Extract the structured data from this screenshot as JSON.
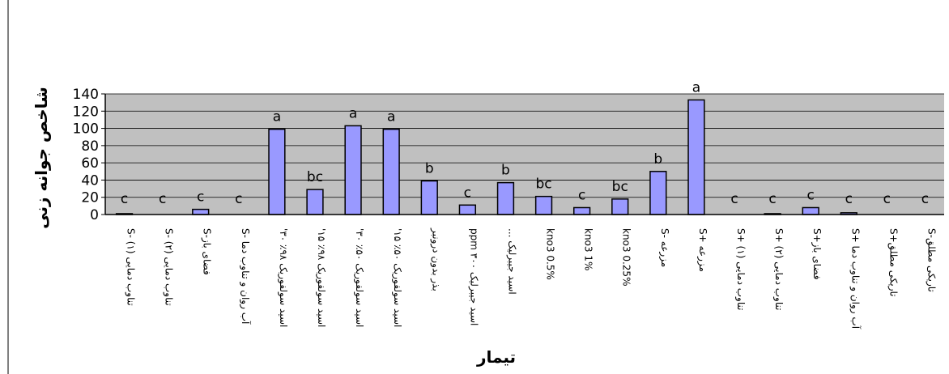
{
  "chart_data": {
    "type": "bar",
    "ylabel": "شاخص جوانه زنی",
    "xlabel": "تیمار",
    "ylim": [
      0,
      140
    ],
    "yticks": [
      0,
      20,
      40,
      60,
      80,
      100,
      120,
      140
    ],
    "grid": true,
    "legend": "none",
    "colors": {
      "bar": "#9999ff",
      "bar_stroke": "#000000",
      "plot_bg": "#c0c0c0",
      "grid": "#000000"
    },
    "categories": [
      "تناوب دمایی (۱) -S",
      "تناوب دمایی (۲) -S",
      "فضای باز-S",
      "آب روان و تناوب دما -S",
      "اسید سولفوریک ۹۸٪ ۳۰'",
      "اسید سولفوریک ۹۸٪ ۱۵'",
      "اسید سولفوریک ۵۰٪ ۳۰'",
      "اسید سولفوریک ۵۰٪ ۱۵'",
      "بذر بدون درونبر",
      "اسید جیبرلیک ۳۰۰ ppm",
      "اسید جیبرلیک ...",
      "kno3 0.5%",
      "kno3 1%",
      "kno3 0.25%",
      "مزرعه -S",
      "مزرعه +S",
      "تناوب دمایی (۱) +S",
      "تناوب دمایی (۲) +S",
      "فضای باز+S",
      "آب روان و تناوب دما +S",
      "تاریکی مطلق+S",
      "تاریکی مطلق-S"
    ],
    "values": [
      1,
      0,
      6,
      0,
      99,
      29,
      103,
      99,
      39,
      11,
      37,
      21,
      8,
      18,
      50,
      133,
      0,
      1,
      8,
      2,
      0,
      0
    ],
    "significance": [
      "c",
      "c",
      "c",
      "c",
      "a",
      "bc",
      "a",
      "a",
      "b",
      "c",
      "b",
      "bc",
      "c",
      "bc",
      "b",
      "a",
      "c",
      "c",
      "c",
      "c",
      "c",
      "c"
    ]
  }
}
